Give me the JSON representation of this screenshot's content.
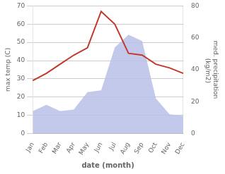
{
  "chart_data": {
    "type": "line",
    "categories": [
      "Jan",
      "Feb",
      "Mar",
      "Apr",
      "May",
      "Jun",
      "Jul",
      "Aug",
      "Sep",
      "Oct",
      "Nov",
      "Dec"
    ],
    "series": [
      {
        "type": "line",
        "color": "#c0392b",
        "values": [
          29,
          33,
          38,
          43,
          47,
          67,
          60,
          44,
          43,
          38,
          36,
          33
        ]
      },
      {
        "type": "area",
        "color": "#b8c0e8",
        "axis": "y2",
        "values": [
          14,
          18,
          14,
          15,
          26,
          27,
          54,
          62,
          58,
          22,
          12,
          11
        ]
      }
    ],
    "xlabel": "date (month)",
    "ylabel": "max temp (C)",
    "y2label": "med. precipitation\n (kg/m2)",
    "ylim": [
      0,
      70
    ],
    "yticks": [
      0,
      10,
      20,
      30,
      40,
      50,
      60,
      70
    ],
    "y2lim": [
      0,
      80
    ],
    "y2ticks": [
      0,
      20,
      40,
      60,
      80
    ],
    "grid": true
  }
}
